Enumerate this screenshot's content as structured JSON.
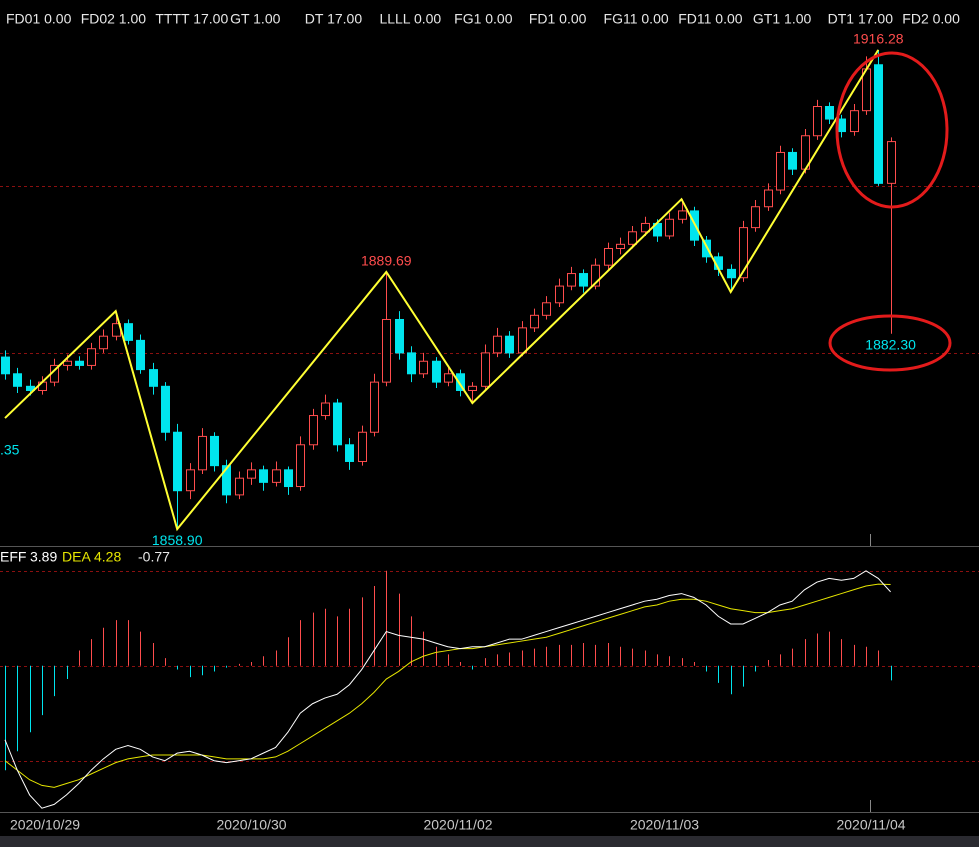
{
  "chart_data": {
    "type": "candlestick",
    "header": [
      "FD01 0.00",
      "FD02 1.00",
      "TTTT 17.00",
      "GT 1.00",
      "DT 17.00",
      "LLLL 0.00",
      "FG1 0.00",
      "FD1 0.00",
      "FG11 0.00",
      "FD11 0.00",
      "GT1 1.00",
      "DT1 17.00",
      "FD2 0.00"
    ],
    "ylim": [
      1857,
      1918.66
    ],
    "levels": [
      1900,
      1880
    ],
    "up_color": "#ff4d4d",
    "down_color": "#00e5ee",
    "candles": [
      [
        1879.5,
        1880.3,
        1876.8,
        1877.5
      ],
      [
        1877.5,
        1878.2,
        1875.2,
        1876.0
      ],
      [
        1876.0,
        1876.8,
        1874.9,
        1875.5
      ],
      [
        1875.5,
        1877.2,
        1875.0,
        1876.5
      ],
      [
        1876.5,
        1879.3,
        1876.0,
        1878.5
      ],
      [
        1878.5,
        1879.8,
        1877.9,
        1879.0
      ],
      [
        1879.0,
        1879.6,
        1878.0,
        1878.5
      ],
      [
        1878.5,
        1881.2,
        1878.0,
        1880.5
      ],
      [
        1880.5,
        1882.8,
        1880.0,
        1882.0
      ],
      [
        1882.0,
        1885.0,
        1881.5,
        1883.5
      ],
      [
        1883.5,
        1884.0,
        1881.0,
        1881.5
      ],
      [
        1881.5,
        1882.2,
        1877.5,
        1878.0
      ],
      [
        1878.0,
        1878.8,
        1875.0,
        1876.0
      ],
      [
        1876.0,
        1876.5,
        1869.5,
        1870.5
      ],
      [
        1870.5,
        1871.5,
        1858.9,
        1863.5
      ],
      [
        1863.5,
        1866.8,
        1862.5,
        1866.0
      ],
      [
        1866.0,
        1871.0,
        1865.5,
        1870.0
      ],
      [
        1870.0,
        1870.5,
        1865.8,
        1866.5
      ],
      [
        1866.5,
        1867.2,
        1862.0,
        1863.0
      ],
      [
        1863.0,
        1865.8,
        1862.5,
        1865.0
      ],
      [
        1865.0,
        1866.9,
        1864.2,
        1866.0
      ],
      [
        1866.0,
        1866.5,
        1863.5,
        1864.5
      ],
      [
        1864.5,
        1867.0,
        1864.0,
        1866.0
      ],
      [
        1866.0,
        1866.4,
        1863.0,
        1864.0
      ],
      [
        1864.0,
        1870.0,
        1863.5,
        1869.0
      ],
      [
        1869.0,
        1873.3,
        1868.4,
        1872.5
      ],
      [
        1872.5,
        1875.0,
        1872.0,
        1874.0
      ],
      [
        1874.0,
        1874.5,
        1868.2,
        1869.0
      ],
      [
        1869.0,
        1869.8,
        1866.0,
        1867.0
      ],
      [
        1867.0,
        1871.3,
        1866.5,
        1870.5
      ],
      [
        1870.5,
        1877.5,
        1870.0,
        1876.5
      ],
      [
        1876.5,
        1889.69,
        1876.0,
        1884.0
      ],
      [
        1884.0,
        1885.0,
        1879.2,
        1880.0
      ],
      [
        1880.0,
        1880.8,
        1876.5,
        1877.5
      ],
      [
        1877.5,
        1880.0,
        1877.0,
        1879.0
      ],
      [
        1879.0,
        1879.5,
        1875.8,
        1876.5
      ],
      [
        1876.5,
        1878.5,
        1876.0,
        1877.5
      ],
      [
        1877.5,
        1878.0,
        1874.8,
        1875.5
      ],
      [
        1875.5,
        1876.5,
        1874.0,
        1876.0
      ],
      [
        1876.0,
        1881.0,
        1875.5,
        1880.0
      ],
      [
        1880.0,
        1883.0,
        1879.5,
        1882.0
      ],
      [
        1882.0,
        1882.6,
        1879.4,
        1880.0
      ],
      [
        1880.0,
        1883.8,
        1879.6,
        1883.0
      ],
      [
        1883.0,
        1885.3,
        1882.5,
        1884.5
      ],
      [
        1884.5,
        1886.8,
        1884.0,
        1886.0
      ],
      [
        1886.0,
        1888.9,
        1885.5,
        1888.0
      ],
      [
        1888.0,
        1890.3,
        1887.5,
        1889.5
      ],
      [
        1889.5,
        1890.0,
        1887.2,
        1888.0
      ],
      [
        1888.0,
        1891.3,
        1887.6,
        1890.5
      ],
      [
        1890.5,
        1893.2,
        1890.0,
        1892.5
      ],
      [
        1892.5,
        1893.8,
        1891.8,
        1893.0
      ],
      [
        1893.0,
        1895.2,
        1892.5,
        1894.5
      ],
      [
        1894.5,
        1896.3,
        1894.0,
        1895.5
      ],
      [
        1895.5,
        1896.0,
        1893.3,
        1894.0
      ],
      [
        1894.0,
        1896.8,
        1893.6,
        1896.0
      ],
      [
        1896.0,
        1898.4,
        1895.5,
        1897.0
      ],
      [
        1897.0,
        1897.5,
        1892.8,
        1893.5
      ],
      [
        1893.5,
        1894.0,
        1890.8,
        1891.5
      ],
      [
        1891.5,
        1892.0,
        1889.2,
        1890.0
      ],
      [
        1890.0,
        1890.6,
        1887.3,
        1889.0
      ],
      [
        1889.0,
        1895.8,
        1888.5,
        1895.0
      ],
      [
        1895.0,
        1898.3,
        1894.5,
        1897.5
      ],
      [
        1897.5,
        1900.3,
        1897.0,
        1899.5
      ],
      [
        1899.5,
        1904.8,
        1899.0,
        1904.0
      ],
      [
        1904.0,
        1904.5,
        1901.3,
        1902.0
      ],
      [
        1902.0,
        1906.8,
        1901.5,
        1906.0
      ],
      [
        1906.0,
        1910.3,
        1905.5,
        1909.5
      ],
      [
        1909.5,
        1910.0,
        1907.4,
        1908.0
      ],
      [
        1908.0,
        1908.5,
        1905.8,
        1906.5
      ],
      [
        1906.5,
        1909.8,
        1906.0,
        1909.0
      ],
      [
        1909.0,
        1915.5,
        1908.5,
        1914.0
      ],
      [
        1914.5,
        1916.28,
        1900.0,
        1900.3
      ],
      [
        1900.3,
        1905.8,
        1882.3,
        1905.3
      ]
    ],
    "zigzag": {
      "index": [
        0,
        9,
        14,
        31,
        38,
        55,
        59,
        71
      ],
      "values": [
        1872.2,
        1885.0,
        1858.9,
        1889.69,
        1874.0,
        1898.4,
        1887.3,
        1916.28
      ],
      "color": "#ffff33"
    },
    "annotations": [
      {
        "value": 1916.28,
        "label": "1916.28",
        "color": "#ff4d4d",
        "side": "above"
      },
      {
        "value": 1889.69,
        "label": "1889.69",
        "color": "#ff4d4d",
        "side": "above"
      },
      {
        "value": 1858.9,
        "label": "1858.90",
        "color": "#00e5ee",
        "side": "below"
      },
      {
        "value": 1882.3,
        "label": "1882.30",
        "color": "#00e5ee",
        "side": "below"
      }
    ],
    "edge_label": ".35",
    "macd": {
      "diff_name": "EFF",
      "dea_name": "DEA",
      "ylim": [
        -7.7,
        6.2
      ],
      "levels": [
        5,
        0,
        -5
      ],
      "diff_color": "#ffffff",
      "dea_color": "#e6e600",
      "diff": [
        -3.9,
        -5.5,
        -6.8,
        -7.5,
        -7.3,
        -6.8,
        -6.2,
        -5.5,
        -4.9,
        -4.4,
        -4.2,
        -4.4,
        -4.8,
        -5.0,
        -4.6,
        -4.5,
        -4.7,
        -5.0,
        -5.1,
        -5.0,
        -4.9,
        -4.6,
        -4.3,
        -3.5,
        -2.5,
        -2.0,
        -1.7,
        -1.5,
        -1.0,
        -0.2,
        0.8,
        1.8,
        1.6,
        1.5,
        1.4,
        1.2,
        1.0,
        0.9,
        1.0,
        1.0,
        1.2,
        1.4,
        1.4,
        1.6,
        1.8,
        2.0,
        2.2,
        2.4,
        2.6,
        2.8,
        3.0,
        3.2,
        3.4,
        3.5,
        3.7,
        3.8,
        3.6,
        3.2,
        2.6,
        2.2,
        2.2,
        2.5,
        2.8,
        3.2,
        3.4,
        4.0,
        4.4,
        4.6,
        4.5,
        4.6,
        5.0,
        4.6,
        3.89
      ],
      "dea": [
        -5.0,
        -5.5,
        -6.0,
        -6.3,
        -6.4,
        -6.2,
        -6.0,
        -5.7,
        -5.4,
        -5.1,
        -4.9,
        -4.8,
        -4.7,
        -4.7,
        -4.7,
        -4.7,
        -4.7,
        -4.8,
        -4.9,
        -4.9,
        -4.9,
        -4.9,
        -4.8,
        -4.5,
        -4.1,
        -3.7,
        -3.3,
        -2.9,
        -2.5,
        -2.0,
        -1.4,
        -0.7,
        -0.3,
        0.2,
        0.5,
        0.7,
        0.8,
        0.9,
        0.9,
        1.0,
        1.1,
        1.2,
        1.3,
        1.4,
        1.5,
        1.7,
        1.9,
        2.1,
        2.3,
        2.5,
        2.7,
        2.9,
        3.1,
        3.2,
        3.4,
        3.5,
        3.5,
        3.4,
        3.2,
        3.0,
        2.9,
        2.8,
        2.8,
        2.9,
        3.0,
        3.2,
        3.4,
        3.6,
        3.8,
        4.0,
        4.2,
        4.3,
        4.28
      ],
      "hist": [
        -5.5,
        -4.5,
        -3.5,
        -2.6,
        -1.6,
        -0.7,
        0.8,
        1.4,
        2.0,
        2.4,
        2.4,
        1.8,
        1.2,
        0.4,
        -0.2,
        -0.6,
        -0.5,
        -0.3,
        -0.1,
        0.1,
        0.2,
        0.5,
        0.8,
        1.5,
        2.4,
        2.8,
        3.0,
        2.6,
        3.0,
        3.6,
        4.2,
        5.0,
        3.8,
        2.6,
        1.8,
        1.0,
        0.6,
        0.2,
        -0.2,
        0.4,
        0.6,
        0.7,
        0.8,
        0.9,
        1.0,
        1.1,
        1.1,
        1.2,
        1.1,
        1.2,
        1.0,
        0.9,
        0.8,
        0.6,
        0.5,
        0.4,
        0.2,
        -0.3,
        -0.9,
        -1.5,
        -1.1,
        -0.3,
        0.3,
        0.6,
        0.9,
        1.4,
        1.7,
        1.8,
        1.4,
        1.1,
        1.0,
        0.8,
        -0.77
      ]
    },
    "dates": [
      "2020/10/29",
      "2020/10/30",
      "2020/11/02",
      "2020/11/03",
      "2020/11/04"
    ]
  }
}
